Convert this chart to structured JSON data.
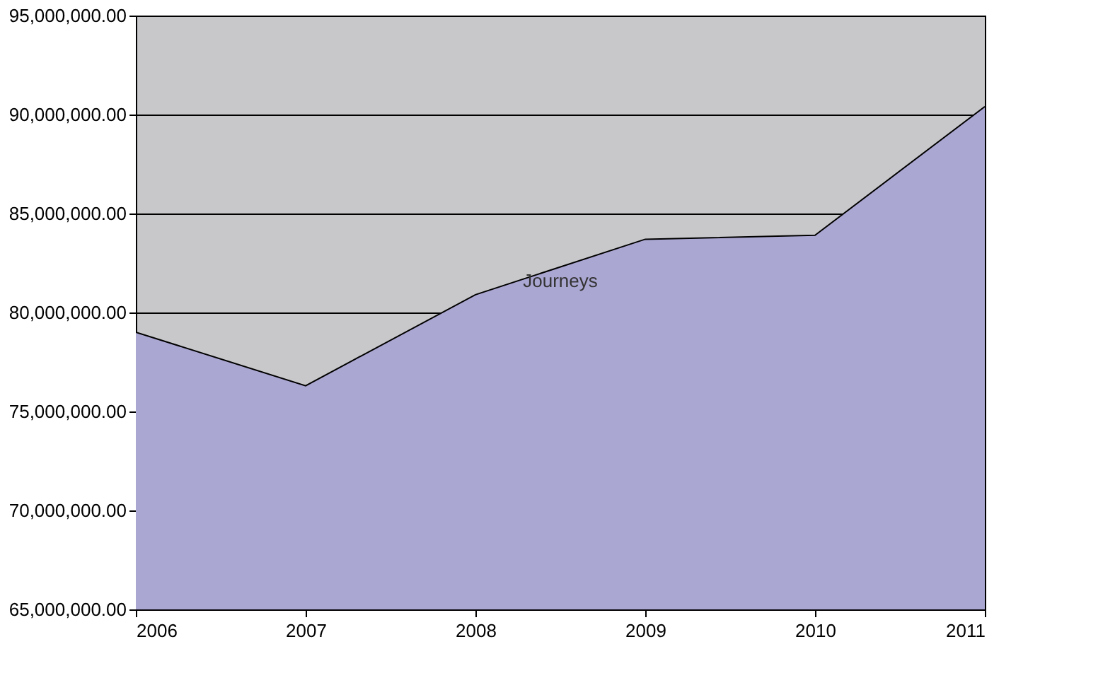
{
  "chart_data": {
    "type": "area",
    "categories": [
      "2006",
      "2007",
      "2008",
      "2009",
      "2010",
      "2011"
    ],
    "series": [
      {
        "name": "Journeys",
        "color": "#aba7d3",
        "values": [
          79000000,
          76300000,
          80900000,
          83700000,
          83900000,
          90400000
        ]
      }
    ],
    "ylim": [
      65000000,
      95000000
    ],
    "yticks": [
      {
        "value": 65000000,
        "label": "65,000,000.00"
      },
      {
        "value": 70000000,
        "label": "70,000,000.00"
      },
      {
        "value": 75000000,
        "label": "75,000,000.00"
      },
      {
        "value": 80000000,
        "label": "80,000,000.00"
      },
      {
        "value": 85000000,
        "label": "85,000,000.00"
      },
      {
        "value": 90000000,
        "label": "90,000,000.00"
      },
      {
        "value": 95000000,
        "label": "95,000,000.00"
      }
    ],
    "grid": "y"
  }
}
